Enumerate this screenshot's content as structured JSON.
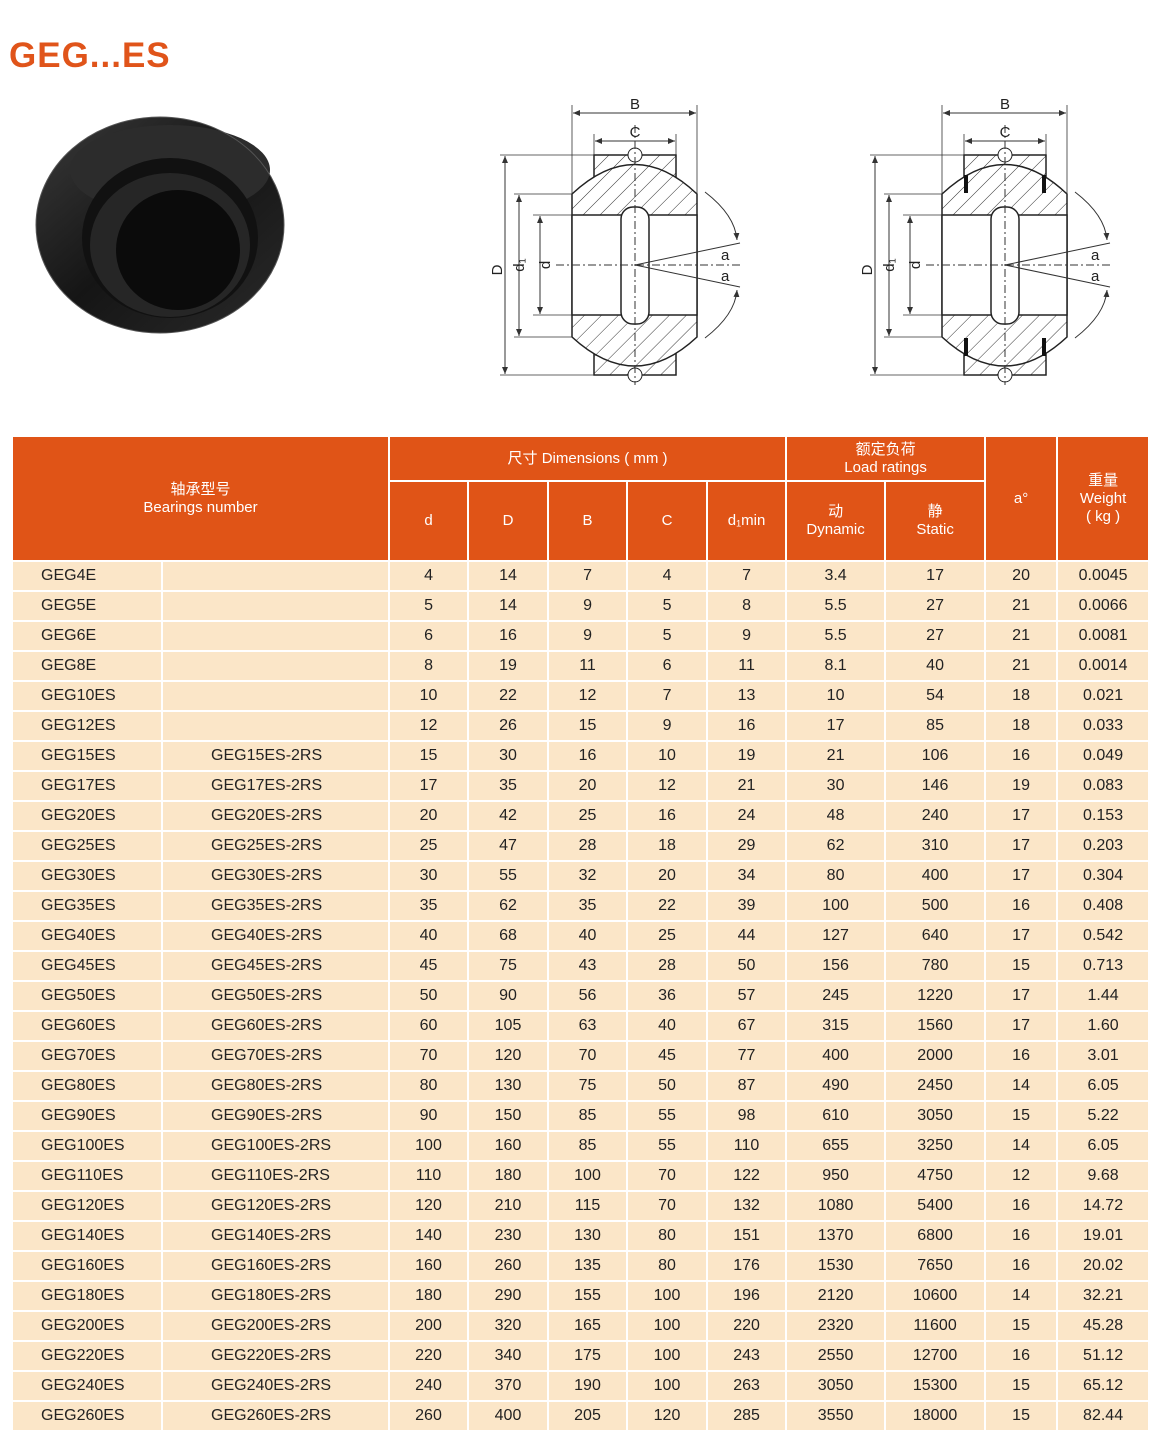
{
  "title": "GEG...ES",
  "diagram_labels": {
    "B": "B",
    "C": "C",
    "D": "D",
    "d1": "d₁",
    "d": "d",
    "a": "a"
  },
  "table": {
    "headers": {
      "bearing_cn": "轴承型号",
      "bearing_en": "Bearings number",
      "dimensions": "尺寸  Dimensions ( mm )",
      "load_cn": "额定负荷",
      "load_en": "Load ratings",
      "angle": "a°",
      "weight_cn": "重量",
      "weight_en": "Weight",
      "weight_unit": "( kg )",
      "d": "d",
      "D": "D",
      "B": "B",
      "C": "C",
      "d1min": "d₁min",
      "dynamic_cn": "动",
      "dynamic_en": "Dynamic",
      "static_cn": "静",
      "static_en": "Static"
    },
    "rows": [
      [
        "GEG4E",
        "",
        "4",
        "14",
        "7",
        "4",
        "7",
        "3.4",
        "17",
        "20",
        "0.0045"
      ],
      [
        "GEG5E",
        "",
        "5",
        "14",
        "9",
        "5",
        "8",
        "5.5",
        "27",
        "21",
        "0.0066"
      ],
      [
        "GEG6E",
        "",
        "6",
        "16",
        "9",
        "5",
        "9",
        "5.5",
        "27",
        "21",
        "0.0081"
      ],
      [
        "GEG8E",
        "",
        "8",
        "19",
        "11",
        "6",
        "11",
        "8.1",
        "40",
        "21",
        "0.0014"
      ],
      [
        "GEG10ES",
        "",
        "10",
        "22",
        "12",
        "7",
        "13",
        "10",
        "54",
        "18",
        "0.021"
      ],
      [
        "GEG12ES",
        "",
        "12",
        "26",
        "15",
        "9",
        "16",
        "17",
        "85",
        "18",
        "0.033"
      ],
      [
        "GEG15ES",
        "GEG15ES-2RS",
        "15",
        "30",
        "16",
        "10",
        "19",
        "21",
        "106",
        "16",
        "0.049"
      ],
      [
        "GEG17ES",
        "GEG17ES-2RS",
        "17",
        "35",
        "20",
        "12",
        "21",
        "30",
        "146",
        "19",
        "0.083"
      ],
      [
        "GEG20ES",
        "GEG20ES-2RS",
        "20",
        "42",
        "25",
        "16",
        "24",
        "48",
        "240",
        "17",
        "0.153"
      ],
      [
        "GEG25ES",
        "GEG25ES-2RS",
        "25",
        "47",
        "28",
        "18",
        "29",
        "62",
        "310",
        "17",
        "0.203"
      ],
      [
        "GEG30ES",
        "GEG30ES-2RS",
        "30",
        "55",
        "32",
        "20",
        "34",
        "80",
        "400",
        "17",
        "0.304"
      ],
      [
        "GEG35ES",
        "GEG35ES-2RS",
        "35",
        "62",
        "35",
        "22",
        "39",
        "100",
        "500",
        "16",
        "0.408"
      ],
      [
        "GEG40ES",
        "GEG40ES-2RS",
        "40",
        "68",
        "40",
        "25",
        "44",
        "127",
        "640",
        "17",
        "0.542"
      ],
      [
        "GEG45ES",
        "GEG45ES-2RS",
        "45",
        "75",
        "43",
        "28",
        "50",
        "156",
        "780",
        "15",
        "0.713"
      ],
      [
        "GEG50ES",
        "GEG50ES-2RS",
        "50",
        "90",
        "56",
        "36",
        "57",
        "245",
        "1220",
        "17",
        "1.44"
      ],
      [
        "GEG60ES",
        "GEG60ES-2RS",
        "60",
        "105",
        "63",
        "40",
        "67",
        "315",
        "1560",
        "17",
        "1.60"
      ],
      [
        "GEG70ES",
        "GEG70ES-2RS",
        "70",
        "120",
        "70",
        "45",
        "77",
        "400",
        "2000",
        "16",
        "3.01"
      ],
      [
        "GEG80ES",
        "GEG80ES-2RS",
        "80",
        "130",
        "75",
        "50",
        "87",
        "490",
        "2450",
        "14",
        "6.05"
      ],
      [
        "GEG90ES",
        "GEG90ES-2RS",
        "90",
        "150",
        "85",
        "55",
        "98",
        "610",
        "3050",
        "15",
        "5.22"
      ],
      [
        "GEG100ES",
        "GEG100ES-2RS",
        "100",
        "160",
        "85",
        "55",
        "110",
        "655",
        "3250",
        "14",
        "6.05"
      ],
      [
        "GEG110ES",
        "GEG110ES-2RS",
        "110",
        "180",
        "100",
        "70",
        "122",
        "950",
        "4750",
        "12",
        "9.68"
      ],
      [
        "GEG120ES",
        "GEG120ES-2RS",
        "120",
        "210",
        "115",
        "70",
        "132",
        "1080",
        "5400",
        "16",
        "14.72"
      ],
      [
        "GEG140ES",
        "GEG140ES-2RS",
        "140",
        "230",
        "130",
        "80",
        "151",
        "1370",
        "6800",
        "16",
        "19.01"
      ],
      [
        "GEG160ES",
        "GEG160ES-2RS",
        "160",
        "260",
        "135",
        "80",
        "176",
        "1530",
        "7650",
        "16",
        "20.02"
      ],
      [
        "GEG180ES",
        "GEG180ES-2RS",
        "180",
        "290",
        "155",
        "100",
        "196",
        "2120",
        "10600",
        "14",
        "32.21"
      ],
      [
        "GEG200ES",
        "GEG200ES-2RS",
        "200",
        "320",
        "165",
        "100",
        "220",
        "2320",
        "11600",
        "15",
        "45.28"
      ],
      [
        "GEG220ES",
        "GEG220ES-2RS",
        "220",
        "340",
        "175",
        "100",
        "243",
        "2550",
        "12700",
        "16",
        "51.12"
      ],
      [
        "GEG240ES",
        "GEG240ES-2RS",
        "240",
        "370",
        "190",
        "100",
        "263",
        "3050",
        "15300",
        "15",
        "65.12"
      ],
      [
        "GEG260ES",
        "GEG260ES-2RS",
        "260",
        "400",
        "205",
        "120",
        "285",
        "3550",
        "18000",
        "15",
        "82.44"
      ]
    ]
  },
  "colors": {
    "accent": "#e05417",
    "row_bg": "#fbe6c8"
  }
}
